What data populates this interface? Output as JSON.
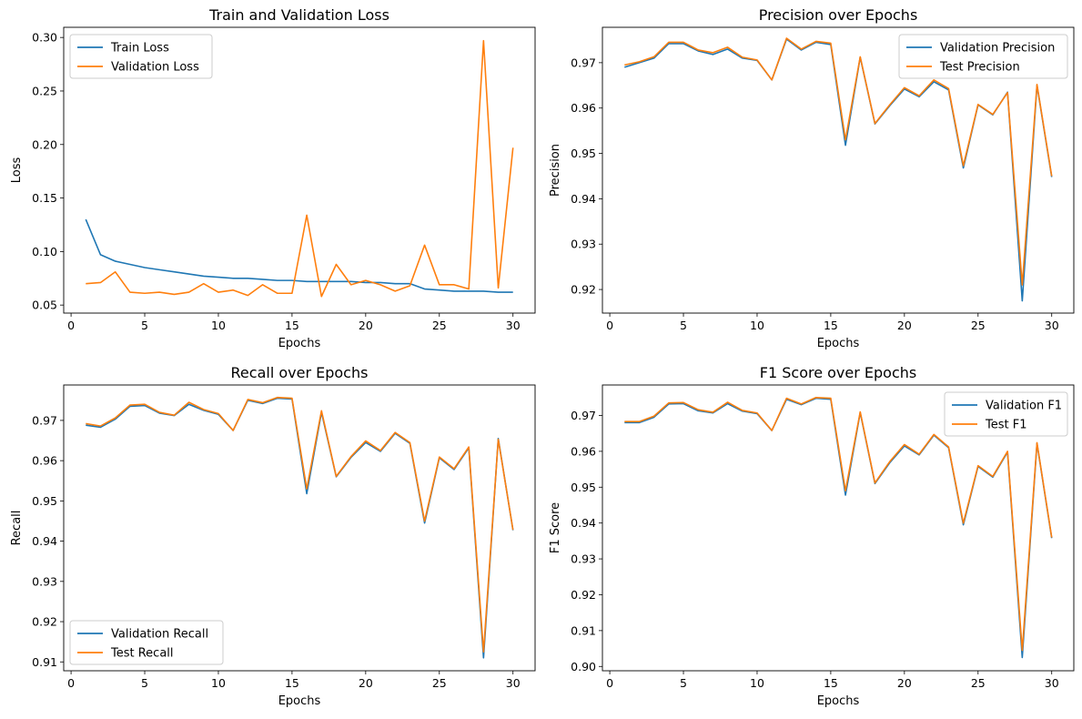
{
  "chart_data": [
    {
      "type": "line",
      "title": "Train and Validation Loss",
      "xlabel": "Epochs",
      "ylabel": "Loss",
      "xlim": [
        -0.5,
        31.5
      ],
      "ylim": [
        0.0425,
        0.3095
      ],
      "xticks": [
        0,
        5,
        10,
        15,
        20,
        25,
        30
      ],
      "yticks": [
        0.05,
        0.1,
        0.15,
        0.2,
        0.25,
        0.3
      ],
      "ytick_labels": [
        "0.05",
        "0.10",
        "0.15",
        "0.20",
        "0.25",
        "0.30"
      ],
      "legend_position": "top-left",
      "x": [
        1,
        2,
        3,
        4,
        5,
        6,
        7,
        8,
        9,
        10,
        11,
        12,
        13,
        14,
        15,
        16,
        17,
        18,
        19,
        20,
        21,
        22,
        23,
        24,
        25,
        26,
        27,
        28,
        29,
        30
      ],
      "series": [
        {
          "name": "Train Loss",
          "color": "#1f77b4",
          "values": [
            0.13,
            0.097,
            0.091,
            0.088,
            0.085,
            0.083,
            0.081,
            0.079,
            0.077,
            0.076,
            0.075,
            0.075,
            0.074,
            0.073,
            0.073,
            0.072,
            0.072,
            0.072,
            0.072,
            0.071,
            0.071,
            0.07,
            0.07,
            0.065,
            0.064,
            0.063,
            0.063,
            0.063,
            0.062,
            0.062
          ]
        },
        {
          "name": "Validation Loss",
          "color": "#ff7f0e",
          "values": [
            0.07,
            0.071,
            0.081,
            0.062,
            0.061,
            0.062,
            0.06,
            0.062,
            0.07,
            0.062,
            0.064,
            0.059,
            0.069,
            0.061,
            0.061,
            0.134,
            0.058,
            0.088,
            0.069,
            0.073,
            0.069,
            0.063,
            0.068,
            0.106,
            0.069,
            0.069,
            0.065,
            0.297,
            0.066,
            0.197
          ]
        }
      ]
    },
    {
      "type": "line",
      "title": "Precision over Epochs",
      "xlabel": "Epochs",
      "ylabel": "Precision",
      "xlim": [
        -0.5,
        31.5
      ],
      "ylim": [
        0.9148,
        0.9778
      ],
      "xticks": [
        0,
        5,
        10,
        15,
        20,
        25,
        30
      ],
      "yticks": [
        0.92,
        0.93,
        0.94,
        0.95,
        0.96,
        0.97
      ],
      "ytick_labels": [
        "0.92",
        "0.93",
        "0.94",
        "0.95",
        "0.96",
        "0.97"
      ],
      "legend_position": "top-right",
      "x": [
        1,
        2,
        3,
        4,
        5,
        6,
        7,
        8,
        9,
        10,
        11,
        12,
        13,
        14,
        15,
        16,
        17,
        18,
        19,
        20,
        21,
        22,
        23,
        24,
        25,
        26,
        27,
        28,
        29,
        30
      ],
      "series": [
        {
          "name": "Validation Precision",
          "color": "#1f77b4",
          "values": [
            0.969,
            0.97,
            0.971,
            0.9742,
            0.9742,
            0.9726,
            0.9718,
            0.973,
            0.971,
            0.9705,
            0.9662,
            0.9752,
            0.9728,
            0.9745,
            0.974,
            0.9518,
            0.9712,
            0.9565,
            0.9605,
            0.9642,
            0.9625,
            0.9658,
            0.964,
            0.9468,
            0.9607,
            0.9585,
            0.9635,
            0.9175,
            0.965,
            0.9448
          ]
        },
        {
          "name": "Test Precision",
          "color": "#ff7f0e",
          "values": [
            0.9695,
            0.9702,
            0.9713,
            0.9745,
            0.9745,
            0.9728,
            0.9722,
            0.9734,
            0.9712,
            0.9706,
            0.9662,
            0.9754,
            0.973,
            0.9747,
            0.9743,
            0.953,
            0.9713,
            0.9566,
            0.9607,
            0.9645,
            0.9627,
            0.9662,
            0.9643,
            0.9473,
            0.9608,
            0.9586,
            0.9634,
            0.921,
            0.9652,
            0.945
          ]
        }
      ]
    },
    {
      "type": "line",
      "title": "Recall over Epochs",
      "xlabel": "Epochs",
      "ylabel": "Recall",
      "xlim": [
        -0.5,
        31.5
      ],
      "ylim": [
        0.9078,
        0.9788
      ],
      "xticks": [
        0,
        5,
        10,
        15,
        20,
        25,
        30
      ],
      "yticks": [
        0.91,
        0.92,
        0.93,
        0.94,
        0.95,
        0.96,
        0.97
      ],
      "ytick_labels": [
        "0.91",
        "0.92",
        "0.93",
        "0.94",
        "0.95",
        "0.96",
        "0.97"
      ],
      "legend_position": "bottom-left",
      "x": [
        1,
        2,
        3,
        4,
        5,
        6,
        7,
        8,
        9,
        10,
        11,
        12,
        13,
        14,
        15,
        16,
        17,
        18,
        19,
        20,
        21,
        22,
        23,
        24,
        25,
        26,
        27,
        28,
        29,
        30
      ],
      "series": [
        {
          "name": "Validation Recall",
          "color": "#1f77b4",
          "values": [
            0.9688,
            0.9683,
            0.9703,
            0.9735,
            0.9737,
            0.9718,
            0.9712,
            0.974,
            0.9725,
            0.9715,
            0.9675,
            0.975,
            0.9742,
            0.9755,
            0.9753,
            0.9518,
            0.972,
            0.956,
            0.9608,
            0.9645,
            0.9623,
            0.9668,
            0.9643,
            0.9445,
            0.9607,
            0.9578,
            0.9632,
            0.911,
            0.9655,
            0.9427
          ]
        },
        {
          "name": "Test Recall",
          "color": "#ff7f0e",
          "values": [
            0.9692,
            0.9686,
            0.9706,
            0.9738,
            0.974,
            0.972,
            0.9713,
            0.9745,
            0.9727,
            0.9717,
            0.9675,
            0.9752,
            0.9744,
            0.9757,
            0.9755,
            0.953,
            0.9724,
            0.9561,
            0.961,
            0.9649,
            0.9625,
            0.967,
            0.9645,
            0.945,
            0.9609,
            0.958,
            0.9634,
            0.9125,
            0.9653,
            0.9428
          ]
        }
      ]
    },
    {
      "type": "line",
      "title": "F1 Score over Epochs",
      "xlabel": "Epochs",
      "ylabel": "F1 Score",
      "xlim": [
        -0.5,
        31.5
      ],
      "ylim": [
        0.8988,
        0.9785
      ],
      "xticks": [
        0,
        5,
        10,
        15,
        20,
        25,
        30
      ],
      "yticks": [
        0.9,
        0.91,
        0.92,
        0.93,
        0.94,
        0.95,
        0.96,
        0.97
      ],
      "ytick_labels": [
        "0.90",
        "0.91",
        "0.92",
        "0.93",
        "0.94",
        "0.95",
        "0.96",
        "0.97"
      ],
      "legend_position": "top-right",
      "x": [
        1,
        2,
        3,
        4,
        5,
        6,
        7,
        8,
        9,
        10,
        11,
        12,
        13,
        14,
        15,
        16,
        17,
        18,
        19,
        20,
        21,
        22,
        23,
        24,
        25,
        26,
        27,
        28,
        29,
        30
      ],
      "series": [
        {
          "name": "Validation F1",
          "color": "#1f77b4",
          "values": [
            0.968,
            0.968,
            0.9695,
            0.9732,
            0.9733,
            0.9713,
            0.9707,
            0.9733,
            0.9712,
            0.9705,
            0.9658,
            0.9745,
            0.973,
            0.9748,
            0.9745,
            0.9478,
            0.9708,
            0.951,
            0.9568,
            0.9615,
            0.959,
            0.9645,
            0.961,
            0.9395,
            0.9558,
            0.9528,
            0.9598,
            0.9025,
            0.9622,
            0.9358
          ]
        },
        {
          "name": "Test F1",
          "color": "#ff7f0e",
          "values": [
            0.9683,
            0.9683,
            0.9698,
            0.9735,
            0.9736,
            0.9716,
            0.9709,
            0.9737,
            0.9714,
            0.9707,
            0.9658,
            0.9748,
            0.9732,
            0.975,
            0.9748,
            0.949,
            0.971,
            0.9512,
            0.9571,
            0.9619,
            0.9592,
            0.9647,
            0.9612,
            0.94,
            0.956,
            0.953,
            0.96,
            0.9045,
            0.9624,
            0.936
          ]
        }
      ]
    }
  ]
}
